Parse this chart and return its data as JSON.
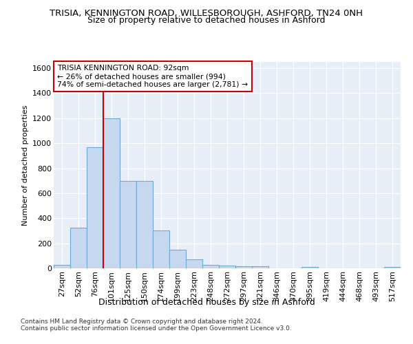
{
  "title": "TRISIA, KENNINGTON ROAD, WILLESBOROUGH, ASHFORD, TN24 0NH",
  "subtitle": "Size of property relative to detached houses in Ashford",
  "xlabel": "Distribution of detached houses by size in Ashford",
  "ylabel": "Number of detached properties",
  "categories": [
    "27sqm",
    "52sqm",
    "76sqm",
    "101sqm",
    "125sqm",
    "150sqm",
    "174sqm",
    "199sqm",
    "223sqm",
    "248sqm",
    "272sqm",
    "297sqm",
    "321sqm",
    "346sqm",
    "370sqm",
    "395sqm",
    "419sqm",
    "444sqm",
    "468sqm",
    "493sqm",
    "517sqm"
  ],
  "values": [
    30,
    325,
    970,
    1200,
    700,
    700,
    305,
    150,
    70,
    30,
    20,
    15,
    15,
    0,
    0,
    12,
    0,
    0,
    0,
    0,
    12
  ],
  "bar_color": "#c5d8f0",
  "bar_edge_color": "#6aaad4",
  "vline_color": "#cc0000",
  "vline_position": 3,
  "annotation_box_color": "#ffffff",
  "annotation_box_edge_color": "#cc0000",
  "marker_label": "TRISIA KENNINGTON ROAD: 92sqm",
  "annotation_line1": "← 26% of detached houses are smaller (994)",
  "annotation_line2": "74% of semi-detached houses are larger (2,781) →",
  "ylim": [
    0,
    1650
  ],
  "yticks": [
    0,
    200,
    400,
    600,
    800,
    1000,
    1200,
    1400,
    1600
  ],
  "bg_color": "#ffffff",
  "plot_bg_color": "#e8eef8",
  "grid_color": "#ffffff",
  "footer_line1": "Contains HM Land Registry data © Crown copyright and database right 2024.",
  "footer_line2": "Contains public sector information licensed under the Open Government Licence v3.0.",
  "title_fontsize": 9.5,
  "subtitle_fontsize": 9,
  "axis_fontsize": 8,
  "xlabel_fontsize": 9,
  "footer_fontsize": 6.5
}
